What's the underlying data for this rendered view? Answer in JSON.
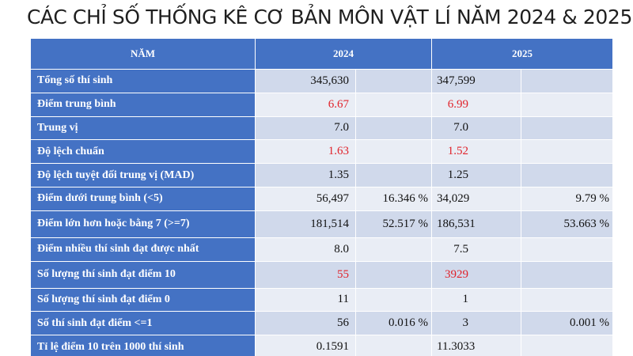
{
  "title": "CÁC CHỈ SỐ THỐNG KÊ CƠ BẢN MÔN VẬT LÍ NĂM 2024 & 2025",
  "header": {
    "year_label": "NĂM",
    "col_2024": "2024",
    "col_2025": "2025"
  },
  "colors": {
    "header_bg": "#4472c4",
    "band_dark": "#d0d9eb",
    "band_light": "#e9edf5",
    "highlight_red": "#e0222a"
  },
  "rows": [
    {
      "label": "Tổng số thí sinh",
      "v2024": "345,630",
      "p2024": "",
      "v2025": "347,599",
      "p2025": "",
      "highlight": false
    },
    {
      "label": "Điểm trung bình",
      "v2024": "6.67",
      "p2024": "",
      "v2025": "6.99",
      "p2025": "",
      "highlight": true
    },
    {
      "label": "Trung vị",
      "v2024": "7.0",
      "p2024": "",
      "v2025": "7.0",
      "p2025": "",
      "highlight": false
    },
    {
      "label": "Độ lệch chuẩn",
      "v2024": "1.63",
      "p2024": "",
      "v2025": "1.52",
      "p2025": "",
      "highlight": true
    },
    {
      "label": "Độ lệch tuyệt đối trung vị (MAD)",
      "v2024": "1.35",
      "p2024": "",
      "v2025": "1.25",
      "p2025": "",
      "highlight": false
    },
    {
      "label": "Điểm dưới trung bình (<5)",
      "v2024": "56,497",
      "p2024": "16.346 %",
      "v2025": "34,029",
      "p2025": "9.79 %",
      "highlight": false
    },
    {
      "label": "Điểm lớn hơn hoặc bằng 7 (>=7)",
      "v2024": "181,514",
      "p2024": "52.517 %",
      "v2025": "186,531",
      "p2025": "53.663 %",
      "highlight": false
    },
    {
      "label": "Điểm nhiều thí sinh đạt được nhất",
      "v2024": "8.0",
      "p2024": "",
      "v2025": "7.5",
      "p2025": "",
      "highlight": false
    },
    {
      "label": "Số lượng thí sinh đạt điểm 10",
      "v2024": "55",
      "p2024": "",
      "v2025": "3929",
      "p2025": "",
      "highlight": true
    },
    {
      "label": "Số lượng thí sinh đạt điểm 0",
      "v2024": "11",
      "p2024": "",
      "v2025": "1",
      "p2025": "",
      "highlight": false
    },
    {
      "label": "Số thí sinh đạt điểm <=1",
      "v2024": "56",
      "p2024": "0.016 %",
      "v2025": "3",
      "p2025": "0.001 %",
      "highlight": false
    },
    {
      "label": "Tỉ lệ điểm 10 trên 1000 thí sinh",
      "v2024": "0.1591",
      "p2024": "",
      "v2025": "11.3033",
      "p2025": "",
      "highlight": false
    }
  ]
}
